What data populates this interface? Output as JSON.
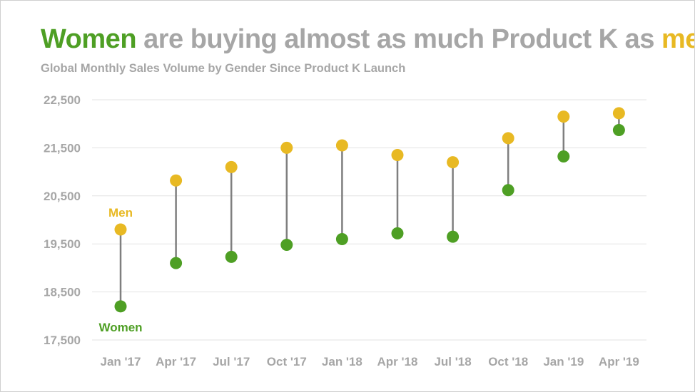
{
  "colors": {
    "women": "#4e9f24",
    "men": "#e8b923",
    "title_gray": "#a6a6a6",
    "connector": "#7f7f7f",
    "grid": "#e3e3e3",
    "tick_text": "#a6a6a6"
  },
  "title": {
    "part_women": "Women",
    "part_middle": " are buying almost as much Product K as ",
    "part_men": "men",
    "part_end": "."
  },
  "subtitle": "Global Monthly Sales Volume by Gender Since Product K Launch",
  "chart_data": {
    "type": "scatter",
    "style": "dumbbell",
    "title": "Women are buying almost as much Product K as men.",
    "subtitle": "Global Monthly Sales Volume by Gender Since Product K Launch",
    "categories": [
      "Jan '17",
      "Apr '17",
      "Jul '17",
      "Oct '17",
      "Jan '18",
      "Apr '18",
      "Jul '18",
      "Oct '18",
      "Jan '19",
      "Apr '19"
    ],
    "series": [
      {
        "name": "Men",
        "color": "#e8b923",
        "values": [
          19800,
          20820,
          21100,
          21500,
          21550,
          21350,
          21200,
          21700,
          22150,
          22220
        ]
      },
      {
        "name": "Women",
        "color": "#4e9f24",
        "values": [
          18200,
          19100,
          19230,
          19480,
          19600,
          19720,
          19650,
          20620,
          21320,
          21870
        ]
      }
    ],
    "ylim": [
      17500,
      22500
    ],
    "yticks": [
      17500,
      18500,
      19500,
      20500,
      21500,
      22500
    ],
    "ytick_labels": [
      "17,500",
      "18,500",
      "19,500",
      "20,500",
      "21,500",
      "22,500"
    ],
    "xlabel": "",
    "ylabel": "",
    "grid": true,
    "legend": "direct labels on first category"
  }
}
